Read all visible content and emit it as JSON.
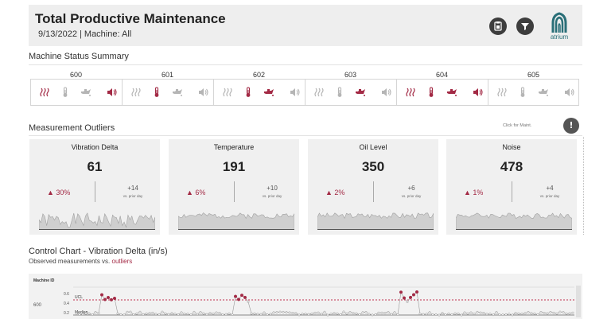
{
  "header": {
    "title": "Total Productive Maintenance",
    "subtitle": "9/13/2022  |  Machine: All",
    "logo_text": "atrium"
  },
  "status_summary": {
    "title": "Machine Status Summary",
    "machines": [
      {
        "id": "600",
        "vibration": "alert",
        "temperature": "normal",
        "oil": "normal",
        "noise": "alert"
      },
      {
        "id": "601",
        "vibration": "normal",
        "temperature": "alert",
        "oil": "normal",
        "noise": "normal"
      },
      {
        "id": "602",
        "vibration": "normal",
        "temperature": "alert",
        "oil": "alert",
        "noise": "normal"
      },
      {
        "id": "603",
        "vibration": "normal",
        "temperature": "normal",
        "oil": "alert",
        "noise": "normal"
      },
      {
        "id": "604",
        "vibration": "alert",
        "temperature": "alert",
        "oil": "alert",
        "noise": "alert"
      },
      {
        "id": "605",
        "vibration": "normal",
        "temperature": "normal",
        "oil": "normal",
        "noise": "normal"
      }
    ],
    "colors": {
      "alert": "#a32a45",
      "normal": "#b5b5b5"
    }
  },
  "outliers": {
    "title": "Measurement Outliers",
    "click_note": "Click for Maint.",
    "cards": [
      {
        "name": "Vibration Delta",
        "value": "61",
        "pct": "▲ 30%",
        "delta": "+14",
        "prior": "vs. prior day"
      },
      {
        "name": "Temperature",
        "value": "191",
        "pct": "▲ 6%",
        "delta": "+10",
        "prior": "vs. prior day"
      },
      {
        "name": "Oil Level",
        "value": "350",
        "pct": "▲ 2%",
        "delta": "+6",
        "prior": "vs. prior day"
      },
      {
        "name": "Noise",
        "value": "478",
        "pct": "▲ 1%",
        "delta": "+4",
        "prior": "vs. prior day"
      }
    ]
  },
  "control_chart": {
    "title": "Control Chart - Vibration Delta (in/s)",
    "subtitle_a": "Observed ",
    "subtitle_b": "measurements",
    "subtitle_c": " vs. ",
    "subtitle_d": "outliers",
    "header_label": "Machine ID",
    "row_label": "600",
    "ticks": [
      "0.6",
      "0.4",
      "0.2"
    ],
    "ucl_label": "UCL",
    "median_label": "Median"
  }
}
